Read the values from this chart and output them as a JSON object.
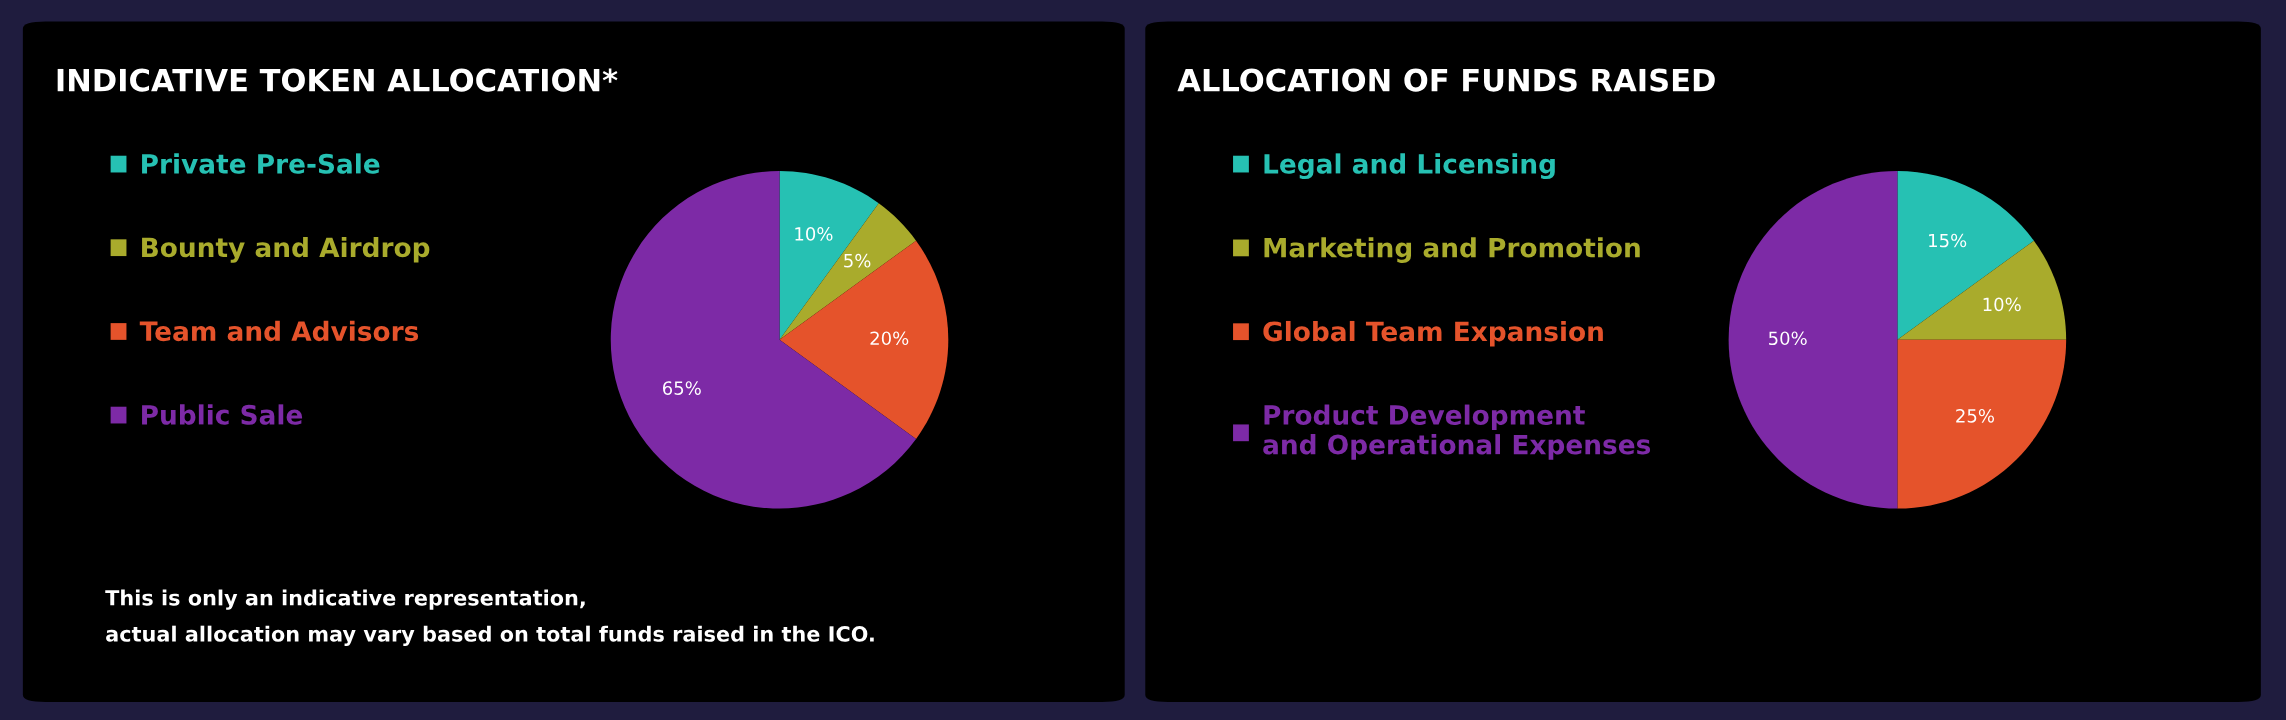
{
  "chart_data": [
    {
      "type": "pie",
      "title": "INDICATIVE TOKEN ALLOCATION*",
      "categories": [
        "Private Pre-Sale",
        "Bounty and Airdrop",
        "Team and Advisors",
        "Public Sale"
      ],
      "values": [
        10,
        5,
        20,
        65
      ],
      "value_labels": [
        "10%",
        "5%",
        "20%",
        "65%"
      ],
      "colors": [
        "#26c1b3",
        "#a9ab2c",
        "#e5532b",
        "#7d2aa6"
      ],
      "legend": "left",
      "annotations": [
        "This is only an indicative representation,\nactual allocation may vary based on total funds raised in the ICO."
      ]
    },
    {
      "type": "pie",
      "title": "ALLOCATION OF FUNDS RAISED",
      "categories": [
        "Legal and Licensing",
        "Marketing and Promotion",
        "Global Team Expansion",
        "Product Development\nand Operational Expenses"
      ],
      "values": [
        15,
        10,
        25,
        50
      ],
      "value_labels": [
        "15%",
        "10%",
        "25%",
        "50%"
      ],
      "colors": [
        "#26c1b3",
        "#a9ab2c",
        "#e5532b",
        "#7d2aa6"
      ],
      "legend": "left"
    }
  ]
}
